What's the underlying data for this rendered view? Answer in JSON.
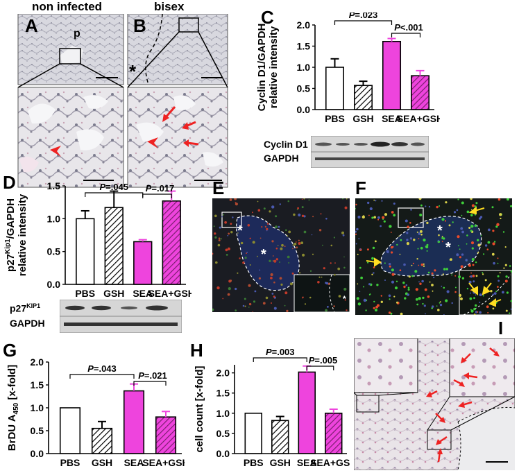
{
  "panels": {
    "A": {
      "letter": "A",
      "header": "non infected",
      "marker": "p"
    },
    "B": {
      "letter": "B",
      "header": "bisex",
      "marker": "*"
    },
    "C": {
      "letter": "C"
    },
    "D": {
      "letter": "D"
    },
    "E": {
      "letter": "E",
      "marker1": "*",
      "marker2": "*",
      "marker3": "*"
    },
    "F": {
      "letter": "F",
      "marker1": "*",
      "marker2": "*"
    },
    "G": {
      "letter": "G"
    },
    "H": {
      "letter": "H"
    },
    "I": {
      "letter": "I"
    }
  },
  "colors": {
    "white_bar": "#ffffff",
    "sea": "#ee44dd",
    "sea_gsh": "#cc33bb",
    "arrow_red": "#ee2222",
    "arrow_yellow": "#ffdd22",
    "fluor_bg": "#1a1c22"
  },
  "blots": {
    "C": [
      "Cyclin D1",
      "GAPDH"
    ],
    "D_protein": "p27",
    "D_sup": "KIP1",
    "D_second": "GAPDH"
  },
  "chart_data": [
    {
      "panel": "C",
      "type": "bar",
      "categories": [
        "PBS",
        "GSH",
        "SEA",
        "SEA+GSH"
      ],
      "values": [
        1.0,
        0.57,
        1.61,
        0.8
      ],
      "errors": [
        0.2,
        0.1,
        0.07,
        0.12
      ],
      "ylabel_line1": "Cyclin D1/GAPDH",
      "ylabel_line2": "relative intensity",
      "ylim": [
        0,
        2.0
      ],
      "yticks": [
        "0.0",
        "0.5",
        "1.0",
        "1.5",
        "2.0"
      ],
      "annotations": [
        {
          "p_italic": "P",
          "text": "=.023",
          "from": 0,
          "to": 2
        },
        {
          "p_italic": "P",
          "text": "<.001",
          "from": 2,
          "to": 3
        }
      ]
    },
    {
      "panel": "D",
      "type": "bar",
      "categories": [
        "PBS",
        "GSH",
        "SEA",
        "SEA+GSH"
      ],
      "values": [
        1.0,
        1.17,
        0.65,
        1.27
      ],
      "errors": [
        0.12,
        0.25,
        0.03,
        0.15
      ],
      "ylabel_main": "p27",
      "ylabel_sup": "Kip1",
      "ylabel_rest": "/GAPDH",
      "ylabel_line2": "relative intensity",
      "ylim": [
        0,
        1.5
      ],
      "yticks": [
        "0.0",
        "0.5",
        "1.0",
        "1.5"
      ],
      "annotations": [
        {
          "p_italic": "P",
          "text": "=.045",
          "from": 0,
          "to": 2
        },
        {
          "p_italic": "P",
          "text": "=.017",
          "from": 2,
          "to": 3
        }
      ]
    },
    {
      "panel": "G",
      "type": "bar",
      "categories": [
        "PBS",
        "GSH",
        "SEA",
        "SEA+GSH"
      ],
      "values": [
        1.0,
        0.55,
        1.37,
        0.8
      ],
      "errors": [
        0,
        0.15,
        0.15,
        0.12
      ],
      "ylabel_main": "BrDU A",
      "ylabel_sub": "450",
      "ylabel_rest": " [x-fold]",
      "ylim": [
        0,
        2.0
      ],
      "yticks": [
        "0.0",
        "0.5",
        "1.0",
        "1.5",
        "2.0"
      ],
      "annotations": [
        {
          "p_italic": "P",
          "text": "=.043",
          "from": 0,
          "to": 2
        },
        {
          "p_italic": "P",
          "text": "=.021",
          "from": 2,
          "to": 3
        }
      ]
    },
    {
      "panel": "H",
      "type": "bar",
      "categories": [
        "PBS",
        "GSH",
        "SEA",
        "SEA+GSH"
      ],
      "values": [
        1.0,
        0.82,
        2.02,
        1.0
      ],
      "errors": [
        0,
        0.1,
        0.15,
        0.1
      ],
      "ylabel": "cell count [x-fold]",
      "ylim": [
        0,
        2.2
      ],
      "yticks": [
        "0.0",
        "0.5",
        "1.0",
        "1.5",
        "2.0"
      ],
      "annotations": [
        {
          "p_italic": "P",
          "text": "=.003",
          "from": 0,
          "to": 2
        },
        {
          "p_italic": "P",
          "text": "=.005",
          "from": 2,
          "to": 3
        }
      ]
    }
  ]
}
